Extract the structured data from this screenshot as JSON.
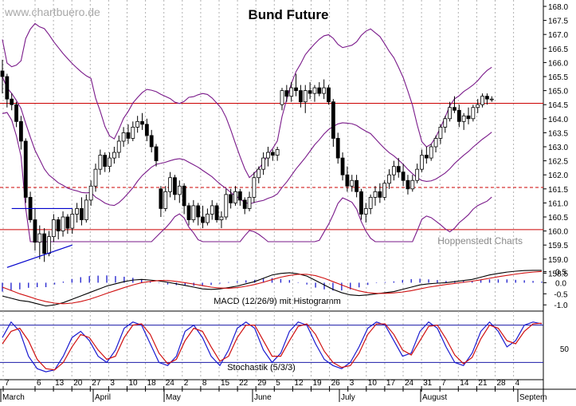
{
  "chart_data": {
    "type": "candlestick",
    "title": "Bund Future",
    "watermark": "www.chartbuero.de",
    "source_note": "Hoppenstedt Charts",
    "price_panel": {
      "ylim": [
        158.0,
        168.0
      ],
      "y_ticks": [
        "168.0",
        "167.5",
        "167.0",
        "166.5",
        "166.0",
        "165.5",
        "165.0",
        "164.5",
        "164.0",
        "163.5",
        "163.0",
        "162.5",
        "162.0",
        "161.5",
        "161.0",
        "160.5",
        "160.0",
        "159.5",
        "159.0",
        "158.5"
      ],
      "horizontal_lines": [
        {
          "value": 164.55,
          "style": "solid",
          "color": "#cc0000"
        },
        {
          "value": 161.55,
          "style": "dashed",
          "color": "#cc0000"
        },
        {
          "value": 160.05,
          "style": "solid",
          "color": "#cc0000"
        }
      ],
      "bollinger_color": "#7a1a8a",
      "trend_lines": [
        {
          "from": [
            1,
            158.7
          ],
          "to": [
            15,
            159.5
          ],
          "color": "#0000cc"
        },
        {
          "from": [
            2,
            160.8
          ],
          "to": [
            15,
            160.8
          ],
          "color": "#0000cc"
        }
      ],
      "candles": [
        [
          165.7,
          166.1,
          164.9,
          165.5
        ],
        [
          165.5,
          165.6,
          164.4,
          164.7
        ],
        [
          164.7,
          164.9,
          164.3,
          164.5
        ],
        [
          164.5,
          164.6,
          163.7,
          163.9
        ],
        [
          163.9,
          164.1,
          162.9,
          163.2
        ],
        [
          163.2,
          163.3,
          161.0,
          161.2
        ],
        [
          161.2,
          161.4,
          160.3,
          160.4
        ],
        [
          160.4,
          160.8,
          159.3,
          159.6
        ],
        [
          159.6,
          160.2,
          159.0,
          159.9
        ],
        [
          159.9,
          160.1,
          158.9,
          159.2
        ],
        [
          159.2,
          160.0,
          159.1,
          159.8
        ],
        [
          159.8,
          160.6,
          159.6,
          160.4
        ],
        [
          160.4,
          160.5,
          159.7,
          160.0
        ],
        [
          160.0,
          160.7,
          159.8,
          160.5
        ],
        [
          160.5,
          160.6,
          159.9,
          160.1
        ],
        [
          160.1,
          160.8,
          159.9,
          160.6
        ],
        [
          160.6,
          161.0,
          160.3,
          160.8
        ],
        [
          160.8,
          161.2,
          160.2,
          160.4
        ],
        [
          160.4,
          161.3,
          160.3,
          161.1
        ],
        [
          161.1,
          161.8,
          160.9,
          161.6
        ],
        [
          161.6,
          162.4,
          161.4,
          162.2
        ],
        [
          162.2,
          162.9,
          162.0,
          162.7
        ],
        [
          162.7,
          162.8,
          162.1,
          162.3
        ],
        [
          162.3,
          162.8,
          162.1,
          162.6
        ],
        [
          162.6,
          163.0,
          162.4,
          162.8
        ],
        [
          162.8,
          163.4,
          162.6,
          163.2
        ],
        [
          163.2,
          163.7,
          163.0,
          163.5
        ],
        [
          163.5,
          163.8,
          163.1,
          163.3
        ],
        [
          163.3,
          163.9,
          163.2,
          163.7
        ],
        [
          163.7,
          164.1,
          163.5,
          163.9
        ],
        [
          163.9,
          164.2,
          163.6,
          163.8
        ],
        [
          163.8,
          164.0,
          163.2,
          163.4
        ],
        [
          163.4,
          163.6,
          162.8,
          163.0
        ],
        [
          163.0,
          163.1,
          162.3,
          162.5
        ],
        [
          161.5,
          161.6,
          160.5,
          160.8
        ],
        [
          160.8,
          161.6,
          160.7,
          161.4
        ],
        [
          161.4,
          162.1,
          161.2,
          161.9
        ],
        [
          161.9,
          162.0,
          161.1,
          161.3
        ],
        [
          161.3,
          161.8,
          161.0,
          161.6
        ],
        [
          161.6,
          161.7,
          160.6,
          160.9
        ],
        [
          160.9,
          161.0,
          160.2,
          160.4
        ],
        [
          160.4,
          161.1,
          160.3,
          160.9
        ],
        [
          160.9,
          161.0,
          160.2,
          160.5
        ],
        [
          160.5,
          160.9,
          160.1,
          160.3
        ],
        [
          160.3,
          160.8,
          160.2,
          160.6
        ],
        [
          160.6,
          161.1,
          160.4,
          160.9
        ],
        [
          160.9,
          161.0,
          160.3,
          160.4
        ],
        [
          160.4,
          160.7,
          160.1,
          160.5
        ],
        [
          160.5,
          161.5,
          160.4,
          161.3
        ],
        [
          161.3,
          161.5,
          160.8,
          161.0
        ],
        [
          161.0,
          161.6,
          160.9,
          161.4
        ],
        [
          161.4,
          161.5,
          160.9,
          161.1
        ],
        [
          161.1,
          161.2,
          160.6,
          160.8
        ],
        [
          160.8,
          161.4,
          160.7,
          161.2
        ],
        [
          161.2,
          162.1,
          161.0,
          161.9
        ],
        [
          161.9,
          162.3,
          161.7,
          162.2
        ],
        [
          162.2,
          162.8,
          162.0,
          162.6
        ],
        [
          162.6,
          163.0,
          162.3,
          162.8
        ],
        [
          162.8,
          162.9,
          162.5,
          162.7
        ],
        [
          162.7,
          163.0,
          162.5,
          162.9
        ],
        [
          164.5,
          165.1,
          164.3,
          165.0
        ],
        [
          165.0,
          165.2,
          164.6,
          164.8
        ],
        [
          164.8,
          165.3,
          164.6,
          165.1
        ],
        [
          165.1,
          165.6,
          164.8,
          165.0
        ],
        [
          165.0,
          165.2,
          164.4,
          164.6
        ],
        [
          164.6,
          165.2,
          164.2,
          165.0
        ],
        [
          165.0,
          165.3,
          164.7,
          164.9
        ],
        [
          164.9,
          165.2,
          164.6,
          165.1
        ],
        [
          165.1,
          165.3,
          164.8,
          164.9
        ],
        [
          164.9,
          165.4,
          164.7,
          165.1
        ],
        [
          165.1,
          165.2,
          164.5,
          164.6
        ],
        [
          164.6,
          164.7,
          163.0,
          163.3
        ],
        [
          163.3,
          163.5,
          162.4,
          162.6
        ],
        [
          162.6,
          162.8,
          161.8,
          162.0
        ],
        [
          162.0,
          162.3,
          161.4,
          161.6
        ],
        [
          161.6,
          162.0,
          161.4,
          161.8
        ],
        [
          161.8,
          162.0,
          161.2,
          161.4
        ],
        [
          161.4,
          161.5,
          160.4,
          160.6
        ],
        [
          160.6,
          161.0,
          160.3,
          160.8
        ],
        [
          160.8,
          161.3,
          160.6,
          161.2
        ],
        [
          161.2,
          161.6,
          160.9,
          161.4
        ],
        [
          161.4,
          161.7,
          161.0,
          161.2
        ],
        [
          161.2,
          161.8,
          161.1,
          161.7
        ],
        [
          161.7,
          162.2,
          161.5,
          162.0
        ],
        [
          162.0,
          162.5,
          161.8,
          162.3
        ],
        [
          162.3,
          162.6,
          161.9,
          162.1
        ],
        [
          162.1,
          162.4,
          161.6,
          161.8
        ],
        [
          161.8,
          162.0,
          161.3,
          161.5
        ],
        [
          161.5,
          162.0,
          161.4,
          161.8
        ],
        [
          161.8,
          162.4,
          161.7,
          162.2
        ],
        [
          162.2,
          162.9,
          162.1,
          162.7
        ],
        [
          162.7,
          163.0,
          162.4,
          162.6
        ],
        [
          162.6,
          163.1,
          162.5,
          163.0
        ],
        [
          163.0,
          163.4,
          162.8,
          163.3
        ],
        [
          163.3,
          163.8,
          163.1,
          163.7
        ],
        [
          163.7,
          164.1,
          163.5,
          164.0
        ],
        [
          164.0,
          164.6,
          163.9,
          164.4
        ],
        [
          164.4,
          164.8,
          164.2,
          164.3
        ],
        [
          164.3,
          164.5,
          163.7,
          163.9
        ],
        [
          163.9,
          164.2,
          163.6,
          164.1
        ],
        [
          164.1,
          164.4,
          163.8,
          164.0
        ],
        [
          164.0,
          164.5,
          163.9,
          164.4
        ],
        [
          164.4,
          164.7,
          164.2,
          164.5
        ],
        [
          164.5,
          164.9,
          164.4,
          164.8
        ],
        [
          164.8,
          164.9,
          164.5,
          164.7
        ],
        [
          164.7,
          164.8,
          164.6,
          164.7
        ]
      ]
    },
    "macd_panel": {
      "label": "MACD (12/26/9) mit Histogramm",
      "y_ticks": [
        "0.5",
        "0.0",
        "-0.5",
        "-1.0"
      ],
      "ylim": [
        -1.1,
        0.7
      ],
      "macd": [
        -0.6,
        -0.7,
        -0.8,
        -0.85,
        -0.95,
        -1.05,
        -1.0,
        -0.9,
        -0.75,
        -0.6,
        -0.45,
        -0.3,
        -0.15,
        -0.05,
        0.05,
        0.12,
        0.15,
        0.12,
        0.08,
        0.02,
        -0.05,
        -0.12,
        -0.2,
        -0.28,
        -0.3,
        -0.28,
        -0.22,
        -0.15,
        -0.05,
        0.05,
        0.2,
        0.35,
        0.42,
        0.45,
        0.4,
        0.3,
        0.1,
        -0.1,
        -0.3,
        -0.45,
        -0.55,
        -0.58,
        -0.55,
        -0.5,
        -0.45,
        -0.4,
        -0.3,
        -0.2,
        -0.1,
        -0.05,
        -0.02,
        0.0,
        0.05,
        0.1,
        0.15,
        0.25,
        0.35,
        0.42,
        0.48,
        0.52,
        0.55,
        0.56,
        0.56
      ],
      "signal": [
        -0.2,
        -0.35,
        -0.5,
        -0.62,
        -0.75,
        -0.85,
        -0.92,
        -0.95,
        -0.92,
        -0.85,
        -0.75,
        -0.62,
        -0.48,
        -0.35,
        -0.22,
        -0.1,
        0.0,
        0.06,
        0.1,
        0.1,
        0.06,
        0.0,
        -0.06,
        -0.13,
        -0.2,
        -0.24,
        -0.25,
        -0.22,
        -0.16,
        -0.08,
        0.02,
        0.14,
        0.25,
        0.33,
        0.38,
        0.38,
        0.32,
        0.2,
        0.05,
        -0.1,
        -0.25,
        -0.37,
        -0.45,
        -0.48,
        -0.48,
        -0.46,
        -0.42,
        -0.36,
        -0.28,
        -0.2,
        -0.14,
        -0.08,
        -0.03,
        0.02,
        0.07,
        0.13,
        0.2,
        0.27,
        0.33,
        0.39,
        0.44,
        0.48,
        0.51
      ]
    },
    "stochastic_panel": {
      "label": "Stochastik  (5/3/3)",
      "y_ticks": [
        "50"
      ],
      "ylim": [
        0,
        100
      ],
      "k": [
        60,
        85,
        70,
        30,
        10,
        5,
        8,
        30,
        60,
        70,
        55,
        30,
        20,
        40,
        75,
        85,
        80,
        50,
        20,
        15,
        30,
        70,
        80,
        60,
        30,
        15,
        40,
        75,
        85,
        75,
        40,
        20,
        35,
        70,
        85,
        80,
        50,
        25,
        15,
        10,
        20,
        45,
        75,
        85,
        80,
        55,
        30,
        35,
        70,
        85,
        75,
        45,
        20,
        15,
        35,
        70,
        85,
        70,
        45,
        55,
        80,
        85,
        82
      ],
      "d": [
        50,
        70,
        75,
        55,
        25,
        10,
        8,
        20,
        45,
        65,
        60,
        40,
        25,
        30,
        60,
        80,
        82,
        65,
        35,
        18,
        25,
        55,
        75,
        70,
        45,
        22,
        30,
        60,
        80,
        80,
        55,
        30,
        30,
        55,
        78,
        82,
        65,
        38,
        20,
        12,
        15,
        35,
        65,
        82,
        82,
        65,
        40,
        32,
        55,
        78,
        80,
        58,
        32,
        18,
        28,
        58,
        80,
        75,
        55,
        50,
        70,
        82,
        83
      ]
    },
    "x_axis": {
      "ticks": [
        "7",
        "6",
        "13",
        "20",
        "27",
        "3",
        "10",
        "18",
        "24",
        "2",
        "8",
        "15",
        "22",
        "29",
        "5",
        "12",
        "19",
        "26",
        "3",
        "10",
        "17",
        "24",
        "31",
        "7",
        "14",
        "21",
        "28",
        "4"
      ],
      "months": [
        "March",
        "April",
        "May",
        "June",
        "July",
        "August",
        "Septem"
      ]
    }
  }
}
